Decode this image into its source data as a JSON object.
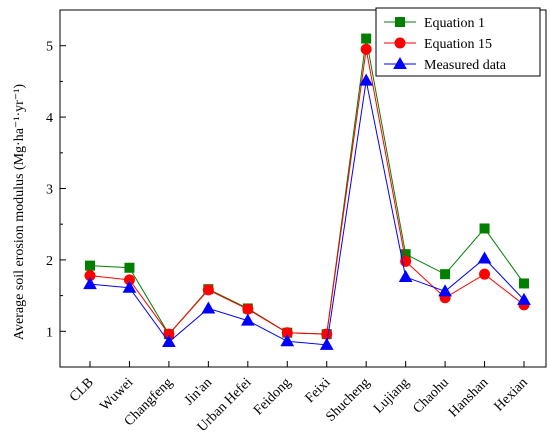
{
  "chart_data": {
    "type": "line",
    "title": "",
    "xlabel": "",
    "ylabel": "Average soil erosion modulus (Mg·ha⁻¹·yr⁻¹)",
    "categories": [
      "CLB",
      "Wuwei",
      "Changfeng",
      "Jin'an",
      "Urban Hefei",
      "Feidong",
      "Feixi",
      "Shucheng",
      "Lujiang",
      "Chaohu",
      "Hanshan",
      "Hexian"
    ],
    "ylim": [
      0.5,
      5.5
    ],
    "yticks": [
      1,
      2,
      3,
      4,
      5
    ],
    "grid": false,
    "legend_position": "top-right",
    "series": [
      {
        "name": "Equation 1",
        "color": "#007f00",
        "marker": "square",
        "values": [
          1.92,
          1.89,
          0.96,
          1.59,
          1.32,
          0.98,
          0.96,
          5.1,
          2.08,
          1.8,
          2.44,
          1.67
        ]
      },
      {
        "name": "Equation 15",
        "color": "#ff0000",
        "marker": "circle",
        "values": [
          1.78,
          1.72,
          0.96,
          1.58,
          1.31,
          0.98,
          0.96,
          4.95,
          1.98,
          1.47,
          1.8,
          1.37
        ]
      },
      {
        "name": "Measured data",
        "color": "#0000ff",
        "marker": "triangle",
        "values": [
          1.66,
          1.61,
          0.85,
          1.32,
          1.15,
          0.86,
          0.81,
          4.51,
          1.76,
          1.56,
          2.02,
          1.44
        ]
      }
    ]
  }
}
